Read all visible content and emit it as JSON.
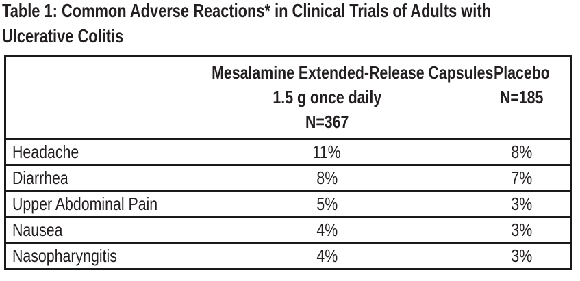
{
  "title": {
    "lines": [
      "Table 1: Common Adverse Reactions* in Clinical Trials of Adults with",
      "Ulcerative Colitis"
    ]
  },
  "table": {
    "header": {
      "reaction_col_label": "",
      "mesalamine_col_lines": [
        "Mesalamine Extended-Release Capsules",
        "1.5 g once daily",
        "N=367"
      ],
      "placebo_col_lines": [
        "Placebo",
        "N=185"
      ]
    },
    "rows": [
      {
        "reaction": "Headache",
        "mesalamine": "11%",
        "placebo": "8%"
      },
      {
        "reaction": "Diarrhea",
        "mesalamine": "8%",
        "placebo": "7%"
      },
      {
        "reaction": "Upper Abdominal Pain",
        "mesalamine": "5%",
        "placebo": "3%"
      },
      {
        "reaction": "Nausea",
        "mesalamine": "4%",
        "placebo": "3%"
      },
      {
        "reaction": "Nasopharyngitis",
        "mesalamine": "4%",
        "placebo": "3%"
      }
    ]
  },
  "colors": {
    "text": "#231f20",
    "border": "#1a1a1a",
    "background": "#ffffff"
  }
}
